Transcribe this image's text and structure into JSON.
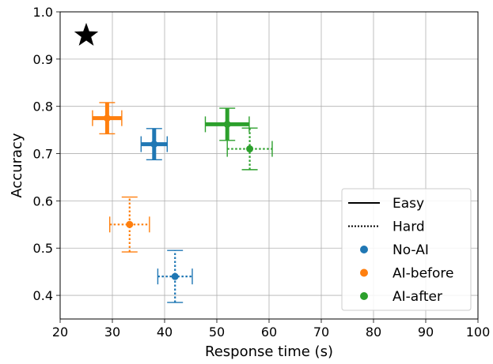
{
  "chart_data": {
    "type": "scatter",
    "title": "",
    "xlabel": "Response time (s)",
    "ylabel": "Accuracy",
    "xlim": [
      20,
      100
    ],
    "ylim": [
      0.35,
      1.0
    ],
    "xticks": [
      20,
      30,
      40,
      50,
      60,
      70,
      80,
      90,
      100
    ],
    "yticks": [
      0.4,
      0.5,
      0.6,
      0.7,
      0.8,
      0.9,
      1.0
    ],
    "xtick_labels": [
      "20",
      "30",
      "40",
      "50",
      "60",
      "70",
      "80",
      "90",
      "100"
    ],
    "ytick_labels": [
      "0.4",
      "0.5",
      "0.6",
      "0.7",
      "0.8",
      "0.9",
      "1.0"
    ],
    "grid": true,
    "legend_position": "bottom-right",
    "reference_point": {
      "marker": "star",
      "color": "#000000",
      "x": 25,
      "y": 0.95
    },
    "series": [
      {
        "name": "No-AI",
        "color": "#1f77b4",
        "points": [
          {
            "difficulty": "Easy",
            "x": 38,
            "y": 0.72,
            "xerr": 2.5,
            "yerr": 0.033
          },
          {
            "difficulty": "Hard",
            "x": 42,
            "y": 0.44,
            "xerr": 3.3,
            "yerr": 0.055
          }
        ]
      },
      {
        "name": "AI-before",
        "color": "#ff7f0e",
        "points": [
          {
            "difficulty": "Easy",
            "x": 29,
            "y": 0.775,
            "xerr": 2.8,
            "yerr": 0.033
          },
          {
            "difficulty": "Hard",
            "x": 33.3,
            "y": 0.55,
            "xerr": 3.8,
            "yerr": 0.058
          }
        ]
      },
      {
        "name": "AI-after",
        "color": "#2ca02c",
        "points": [
          {
            "difficulty": "Easy",
            "x": 52,
            "y": 0.762,
            "xerr": 4.2,
            "yerr": 0.034
          },
          {
            "difficulty": "Hard",
            "x": 56.3,
            "y": 0.71,
            "xerr": 4.3,
            "yerr": 0.044
          }
        ]
      }
    ],
    "legend": [
      {
        "label": "Easy",
        "style": "solid",
        "color": "#000000"
      },
      {
        "label": "Hard",
        "style": "dotted",
        "color": "#000000"
      },
      {
        "label": "No-AI",
        "style": "dot",
        "color": "#1f77b4"
      },
      {
        "label": "AI-before",
        "style": "dot",
        "color": "#ff7f0e"
      },
      {
        "label": "AI-after",
        "style": "dot",
        "color": "#2ca02c"
      }
    ]
  }
}
